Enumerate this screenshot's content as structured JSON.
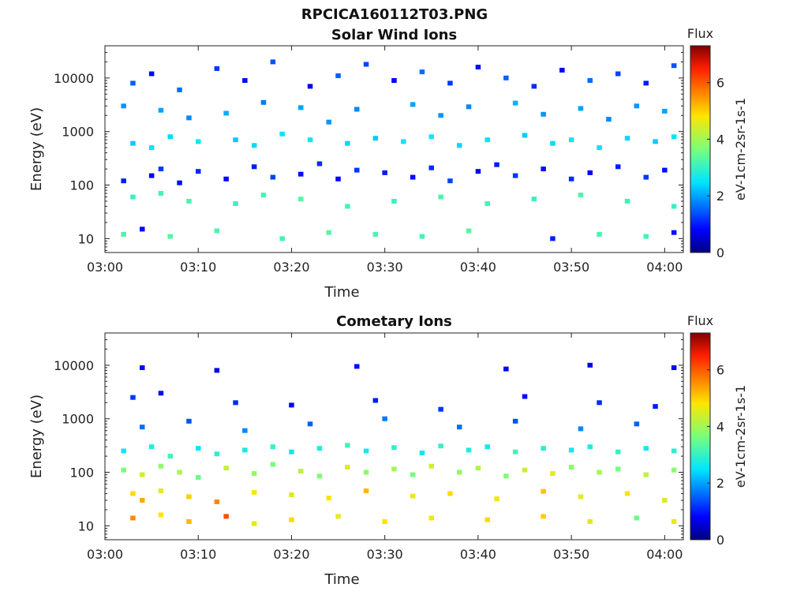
{
  "figure": {
    "title": "RPCICA160112T03.PNG"
  },
  "chart_data": [
    {
      "type": "heatmap",
      "title": "Solar Wind Ions",
      "xlabel": "Time",
      "ylabel": "Energy (eV)",
      "x_ticks": [
        "03:00",
        "03:10",
        "03:20",
        "03:30",
        "03:40",
        "03:50",
        "04:00"
      ],
      "y_ticks": [
        "10",
        "100",
        "1000",
        "10000"
      ],
      "xlim": [
        "03:00",
        "04:02"
      ],
      "ylim_eV": [
        5.5,
        40000
      ],
      "y_scale": "log",
      "colorbar": {
        "label": "eV-1cm-2sr-1s-1",
        "title": "Flux",
        "ticks": [
          "0",
          "2",
          "4",
          "6"
        ],
        "range": [
          0,
          7.3
        ],
        "colormap": "jet"
      },
      "cells": [
        [
          "03:03",
          8000,
          1.5
        ],
        [
          "03:05",
          12000,
          0.8
        ],
        [
          "03:08",
          6000,
          1.6
        ],
        [
          "03:12",
          15000,
          1.2
        ],
        [
          "03:15",
          9000,
          0.9
        ],
        [
          "03:18",
          20000,
          1.4
        ],
        [
          "03:22",
          7000,
          0.7
        ],
        [
          "03:25",
          11000,
          1.5
        ],
        [
          "03:28",
          18000,
          1.3
        ],
        [
          "03:31",
          9000,
          0.8
        ],
        [
          "03:34",
          13000,
          1.6
        ],
        [
          "03:37",
          8000,
          1.2
        ],
        [
          "03:40",
          16000,
          0.9
        ],
        [
          "03:43",
          10000,
          1.5
        ],
        [
          "03:46",
          7000,
          1.1
        ],
        [
          "03:49",
          14000,
          0.8
        ],
        [
          "03:52",
          9000,
          1.6
        ],
        [
          "03:55",
          12000,
          1.3
        ],
        [
          "03:58",
          8000,
          1.0
        ],
        [
          "04:01",
          17000,
          1.4
        ],
        [
          "03:02",
          3000,
          1.9
        ],
        [
          "03:06",
          2500,
          2.0
        ],
        [
          "03:09",
          1800,
          1.8
        ],
        [
          "03:13",
          2200,
          2.1
        ],
        [
          "03:17",
          3500,
          1.7
        ],
        [
          "03:21",
          2800,
          2.0
        ],
        [
          "03:24",
          1500,
          1.9
        ],
        [
          "03:27",
          2600,
          1.8
        ],
        [
          "03:33",
          3200,
          2.0
        ],
        [
          "03:36",
          2000,
          1.9
        ],
        [
          "03:39",
          2900,
          1.8
        ],
        [
          "03:44",
          3400,
          2.1
        ],
        [
          "03:47",
          2100,
          1.9
        ],
        [
          "03:51",
          2700,
          2.0
        ],
        [
          "03:54",
          1700,
          1.8
        ],
        [
          "03:57",
          3000,
          1.9
        ],
        [
          "04:00",
          2400,
          2.0
        ],
        [
          "03:03",
          600,
          2.3
        ],
        [
          "03:05",
          500,
          2.5
        ],
        [
          "03:07",
          800,
          2.4
        ],
        [
          "03:10",
          650,
          2.6
        ],
        [
          "03:14",
          700,
          2.3
        ],
        [
          "03:16",
          550,
          2.4
        ],
        [
          "03:19",
          900,
          2.5
        ],
        [
          "03:22",
          700,
          2.6
        ],
        [
          "03:26",
          600,
          2.4
        ],
        [
          "03:29",
          750,
          2.3
        ],
        [
          "03:32",
          650,
          2.5
        ],
        [
          "03:35",
          800,
          2.6
        ],
        [
          "03:38",
          550,
          2.4
        ],
        [
          "03:41",
          700,
          2.5
        ],
        [
          "03:45",
          850,
          2.3
        ],
        [
          "03:48",
          600,
          2.4
        ],
        [
          "03:50",
          700,
          2.6
        ],
        [
          "03:53",
          500,
          2.5
        ],
        [
          "03:56",
          750,
          2.4
        ],
        [
          "03:59",
          650,
          2.3
        ],
        [
          "04:01",
          800,
          2.5
        ],
        [
          "03:02",
          120,
          1.0
        ],
        [
          "03:05",
          150,
          0.8
        ],
        [
          "03:06",
          200,
          1.2
        ],
        [
          "03:08",
          110,
          0.9
        ],
        [
          "03:10",
          180,
          1.1
        ],
        [
          "03:13",
          130,
          0.8
        ],
        [
          "03:16",
          220,
          1.0
        ],
        [
          "03:18",
          140,
          1.3
        ],
        [
          "03:21",
          160,
          0.9
        ],
        [
          "03:23",
          250,
          1.1
        ],
        [
          "03:25",
          130,
          0.8
        ],
        [
          "03:27",
          190,
          1.2
        ],
        [
          "03:30",
          170,
          1.0
        ],
        [
          "03:33",
          140,
          0.9
        ],
        [
          "03:35",
          210,
          1.1
        ],
        [
          "03:37",
          120,
          1.3
        ],
        [
          "03:40",
          180,
          0.8
        ],
        [
          "03:42",
          240,
          1.0
        ],
        [
          "03:44",
          150,
          1.2
        ],
        [
          "03:47",
          200,
          0.9
        ],
        [
          "03:50",
          130,
          1.1
        ],
        [
          "03:52",
          170,
          0.8
        ],
        [
          "03:55",
          220,
          1.0
        ],
        [
          "03:58",
          140,
          1.2
        ],
        [
          "04:00",
          190,
          0.9
        ],
        [
          "03:03",
          60,
          3.0
        ],
        [
          "03:06",
          70,
          3.1
        ],
        [
          "03:09",
          50,
          3.2
        ],
        [
          "03:14",
          45,
          3.0
        ],
        [
          "03:17",
          65,
          3.1
        ],
        [
          "03:21",
          55,
          3.3
        ],
        [
          "03:26",
          40,
          3.1
        ],
        [
          "03:31",
          50,
          3.0
        ],
        [
          "03:36",
          60,
          3.2
        ],
        [
          "03:41",
          45,
          3.1
        ],
        [
          "03:46",
          55,
          3.0
        ],
        [
          "03:51",
          65,
          3.2
        ],
        [
          "03:56",
          50,
          3.1
        ],
        [
          "04:01",
          40,
          3.0
        ],
        [
          "03:02",
          12,
          3.2
        ],
        [
          "03:04",
          15,
          0.8
        ],
        [
          "03:07",
          11,
          3.3
        ],
        [
          "03:12",
          14,
          3.2
        ],
        [
          "03:19",
          10,
          3.1
        ],
        [
          "03:24",
          13,
          3.3
        ],
        [
          "03:29",
          12,
          3.2
        ],
        [
          "03:34",
          11,
          3.1
        ],
        [
          "03:39",
          14,
          3.3
        ],
        [
          "03:48",
          10,
          1.0
        ],
        [
          "03:53",
          12,
          3.2
        ],
        [
          "03:58",
          11,
          3.1
        ],
        [
          "04:01",
          13,
          0.9
        ]
      ]
    },
    {
      "type": "heatmap",
      "title": "Cometary Ions",
      "xlabel": "Time",
      "ylabel": "Energy (eV)",
      "x_ticks": [
        "03:00",
        "03:10",
        "03:20",
        "03:30",
        "03:40",
        "03:50",
        "04:00"
      ],
      "y_ticks": [
        "10",
        "100",
        "1000",
        "10000"
      ],
      "xlim": [
        "03:00",
        "04:02"
      ],
      "ylim_eV": [
        5.5,
        40000
      ],
      "y_scale": "log",
      "colorbar": {
        "label": "eV-1cm-2sr-1s-1",
        "title": "Flux",
        "ticks": [
          "0",
          "2",
          "4",
          "6"
        ],
        "range": [
          0,
          7.3
        ],
        "colormap": "jet"
      },
      "cells": [
        [
          "03:04",
          9000,
          0.8
        ],
        [
          "03:12",
          8000,
          0.7
        ],
        [
          "03:27",
          9500,
          0.9
        ],
        [
          "03:43",
          8500,
          0.8
        ],
        [
          "03:52",
          10000,
          0.7
        ],
        [
          "04:01",
          9000,
          0.8
        ],
        [
          "03:03",
          2500,
          1.2
        ],
        [
          "03:06",
          3000,
          0.9
        ],
        [
          "03:14",
          2000,
          1.1
        ],
        [
          "03:20",
          1800,
          0.8
        ],
        [
          "03:29",
          2200,
          1.0
        ],
        [
          "03:36",
          1500,
          1.2
        ],
        [
          "03:45",
          2600,
          0.9
        ],
        [
          "03:53",
          2000,
          1.1
        ],
        [
          "03:59",
          1700,
          1.0
        ],
        [
          "03:04",
          700,
          1.6
        ],
        [
          "03:09",
          900,
          1.4
        ],
        [
          "03:15",
          600,
          1.8
        ],
        [
          "03:22",
          800,
          1.5
        ],
        [
          "03:30",
          1000,
          1.7
        ],
        [
          "03:38",
          700,
          1.6
        ],
        [
          "03:44",
          900,
          1.4
        ],
        [
          "03:51",
          650,
          1.8
        ],
        [
          "03:57",
          800,
          1.5
        ],
        [
          "03:02",
          250,
          2.6
        ],
        [
          "03:05",
          300,
          2.8
        ],
        [
          "03:07",
          200,
          3.1
        ],
        [
          "03:10",
          280,
          2.5
        ],
        [
          "03:12",
          220,
          2.9
        ],
        [
          "03:15",
          260,
          2.7
        ],
        [
          "03:18",
          300,
          3.0
        ],
        [
          "03:20",
          240,
          2.6
        ],
        [
          "03:23",
          280,
          2.8
        ],
        [
          "03:26",
          320,
          3.1
        ],
        [
          "03:28",
          250,
          2.7
        ],
        [
          "03:31",
          290,
          2.9
        ],
        [
          "03:34",
          230,
          2.6
        ],
        [
          "03:36",
          310,
          3.0
        ],
        [
          "03:39",
          260,
          2.8
        ],
        [
          "03:41",
          300,
          2.7
        ],
        [
          "03:44",
          240,
          3.1
        ],
        [
          "03:47",
          280,
          2.9
        ],
        [
          "03:50",
          260,
          2.6
        ],
        [
          "03:52",
          300,
          2.8
        ],
        [
          "03:55",
          240,
          3.0
        ],
        [
          "03:58",
          280,
          2.7
        ],
        [
          "04:01",
          250,
          2.9
        ],
        [
          "03:02",
          110,
          3.6
        ],
        [
          "03:04",
          90,
          4.4
        ],
        [
          "03:06",
          130,
          3.8
        ],
        [
          "03:08",
          100,
          4.1
        ],
        [
          "03:10",
          80,
          3.5
        ],
        [
          "03:13",
          120,
          4.3
        ],
        [
          "03:16",
          95,
          3.9
        ],
        [
          "03:18",
          140,
          3.6
        ],
        [
          "03:21",
          105,
          4.2
        ],
        [
          "03:23",
          85,
          3.7
        ],
        [
          "03:26",
          125,
          4.5
        ],
        [
          "03:28",
          100,
          3.8
        ],
        [
          "03:31",
          115,
          4.0
        ],
        [
          "03:33",
          90,
          3.6
        ],
        [
          "03:35",
          130,
          4.4
        ],
        [
          "03:38",
          100,
          3.9
        ],
        [
          "03:40",
          120,
          4.1
        ],
        [
          "03:43",
          85,
          3.7
        ],
        [
          "03:45",
          110,
          4.3
        ],
        [
          "03:48",
          95,
          4.6
        ],
        [
          "03:50",
          125,
          3.8
        ],
        [
          "03:53",
          100,
          4.0
        ],
        [
          "03:55",
          115,
          3.6
        ],
        [
          "03:58",
          90,
          4.2
        ],
        [
          "04:01",
          110,
          3.8
        ],
        [
          "03:03",
          40,
          4.9
        ],
        [
          "03:04",
          30,
          5.3
        ],
        [
          "03:06",
          45,
          4.6
        ],
        [
          "03:09",
          35,
          5.0
        ],
        [
          "03:12",
          28,
          5.6
        ],
        [
          "03:16",
          42,
          4.7
        ],
        [
          "03:20",
          38,
          4.5
        ],
        [
          "03:24",
          33,
          4.8
        ],
        [
          "03:28",
          45,
          5.2
        ],
        [
          "03:33",
          36,
          4.6
        ],
        [
          "03:37",
          40,
          4.9
        ],
        [
          "03:42",
          32,
          4.7
        ],
        [
          "03:47",
          44,
          5.1
        ],
        [
          "03:51",
          35,
          4.6
        ],
        [
          "03:56",
          40,
          4.8
        ],
        [
          "04:00",
          30,
          4.5
        ],
        [
          "03:03",
          14,
          5.6
        ],
        [
          "03:06",
          16,
          4.8
        ],
        [
          "03:09",
          12,
          5.2
        ],
        [
          "03:13",
          15,
          6.1
        ],
        [
          "03:16",
          11,
          4.6
        ],
        [
          "03:20",
          13,
          4.9
        ],
        [
          "03:25",
          15,
          4.6
        ],
        [
          "03:30",
          12,
          4.8
        ],
        [
          "03:35",
          14,
          4.7
        ],
        [
          "03:41",
          13,
          4.9
        ],
        [
          "03:47",
          15,
          5.0
        ],
        [
          "03:52",
          12,
          4.6
        ],
        [
          "03:57",
          14,
          3.5
        ],
        [
          "04:01",
          12,
          4.6
        ]
      ]
    }
  ]
}
